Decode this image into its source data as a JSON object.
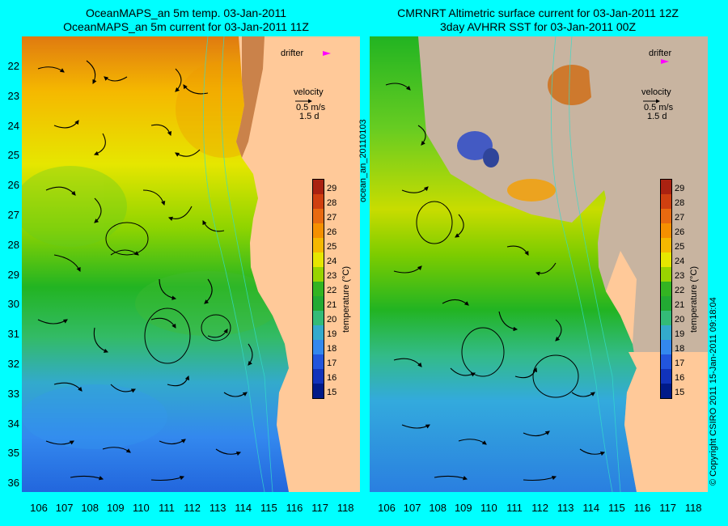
{
  "left_panel": {
    "title_line1": "OceanMAPS_an 5m temp. 03-Jan-2011",
    "title_line2": "OceanMAPS_an 5m current for 03-Jan-2011 11Z"
  },
  "right_panel": {
    "title_line1": "CMRNRT Altimetric surface current for 03-Jan-2011 12Z",
    "title_line2": "3day AVHRR SST for 03-Jan-2011 00Z"
  },
  "legend": {
    "drifter_label": "drifter",
    "velocity_label": "velocity",
    "velocity_scale": "0.5 m/s",
    "velocity_time": "1.5 d"
  },
  "colorbar": {
    "title": "temperature (°C)",
    "ticks": [
      "29",
      "28",
      "27",
      "26",
      "25",
      "24",
      "23",
      "22",
      "21",
      "20",
      "19",
      "18",
      "17",
      "16",
      "15"
    ]
  },
  "axes": {
    "lat_ticks": [
      "22",
      "23",
      "24",
      "25",
      "26",
      "27",
      "28",
      "29",
      "30",
      "31",
      "32",
      "33",
      "34",
      "35",
      "36"
    ],
    "lon_ticks": [
      "106",
      "107",
      "108",
      "109",
      "110",
      "111",
      "112",
      "113",
      "114",
      "115",
      "116",
      "117",
      "118"
    ]
  },
  "side_label": "ocean_an_20110103",
  "copyright": "© Copyright CSIRO 2011   15-Jan-2011 09:18:04",
  "colors": {
    "land": "#ffc999",
    "land_grey": "#c8b4a0",
    "frame": "#00ffff",
    "drifter": "#ff00ff"
  }
}
